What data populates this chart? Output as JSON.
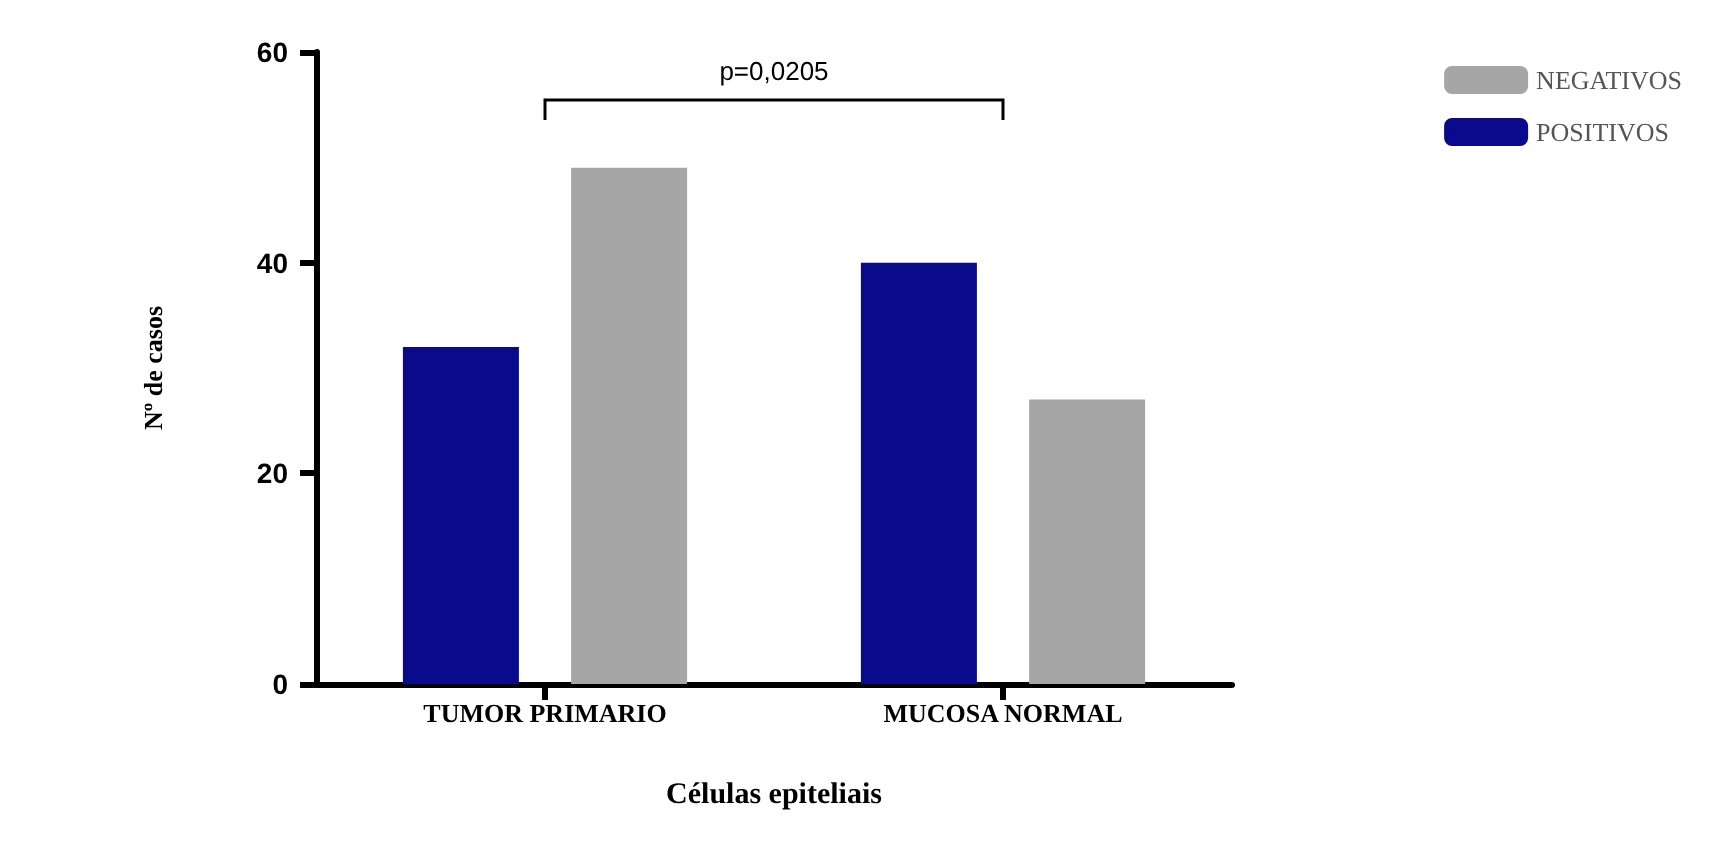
{
  "chart_data": {
    "type": "bar",
    "xlabel": "Células epiteliais",
    "ylabel": "Nº de casos",
    "categories": [
      "TUMOR PRIMARIO",
      "MUCOSA NORMAL"
    ],
    "series": [
      {
        "name": "POSITIVOS",
        "color": "#0a0a8c",
        "values": [
          32,
          40
        ]
      },
      {
        "name": "NEGATIVOS",
        "color": "#a6a6a6",
        "values": [
          49,
          27
        ]
      }
    ],
    "ylim": [
      0,
      60
    ],
    "yticks": [
      0,
      20,
      40,
      60
    ],
    "grid": false,
    "legend": "top right",
    "annotations": [
      "p=0,0205"
    ]
  }
}
